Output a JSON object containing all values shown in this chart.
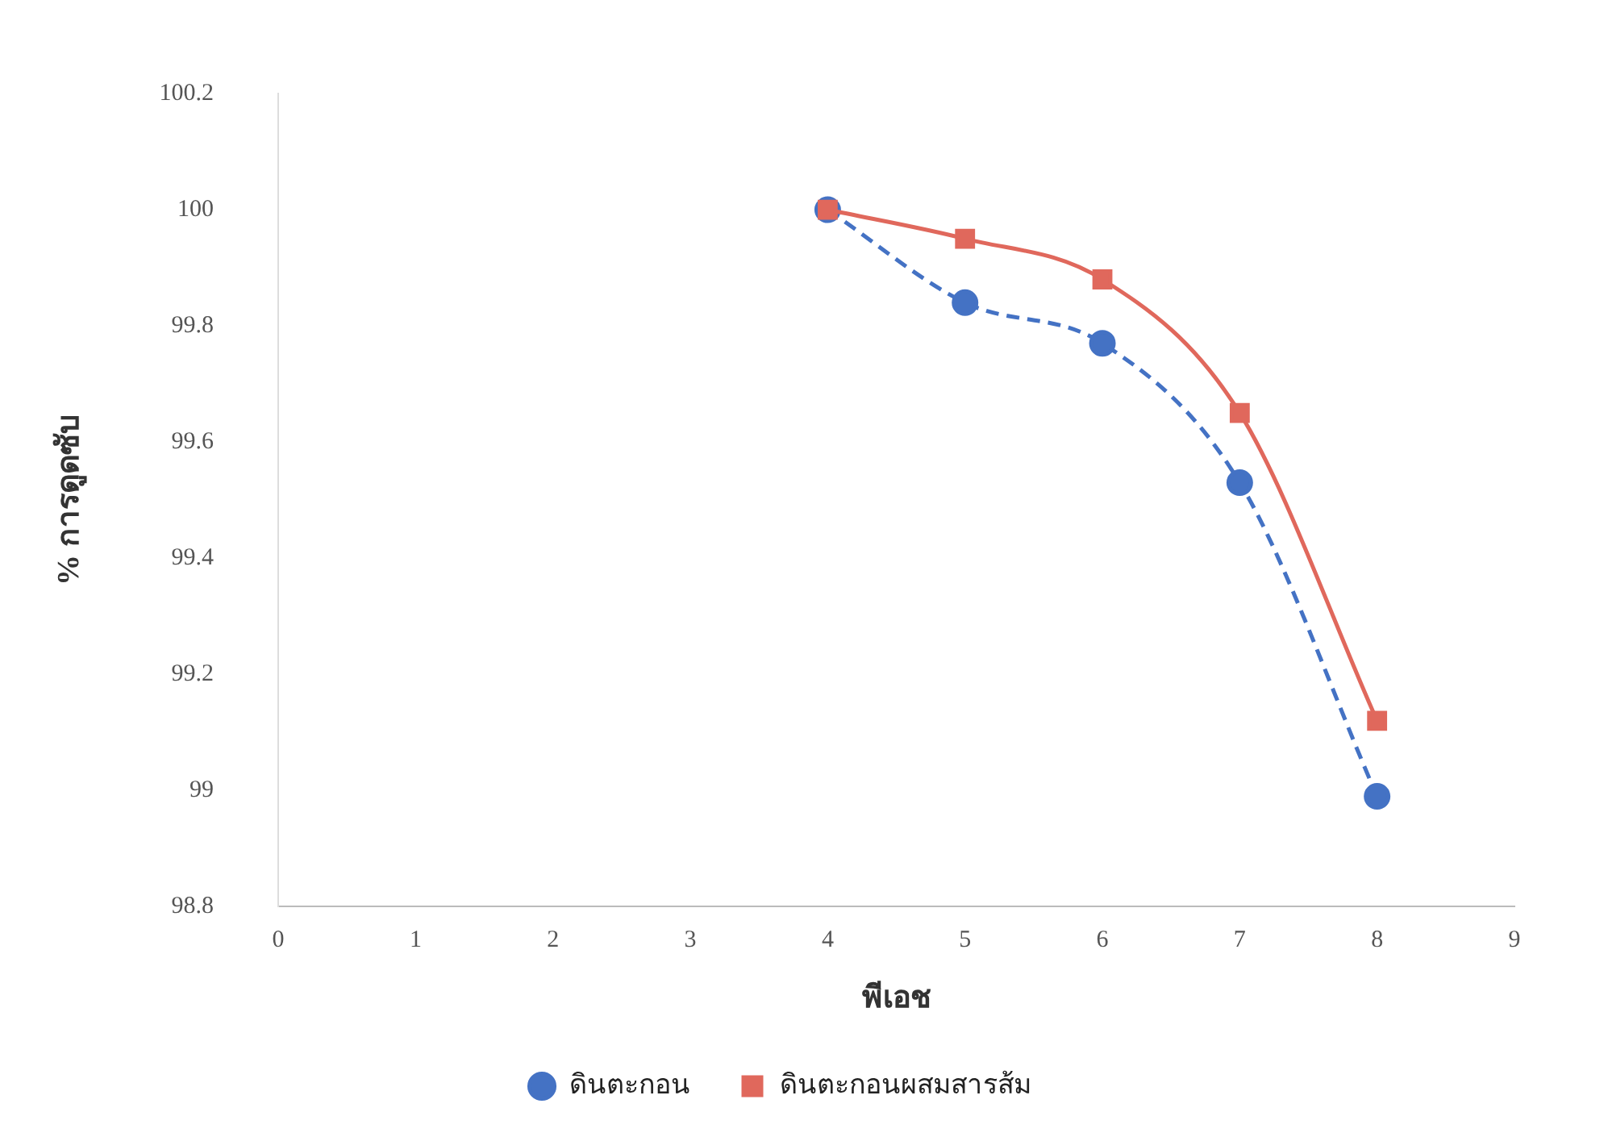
{
  "chart_data": {
    "type": "line",
    "xlabel": "พีเอช",
    "ylabel": "% การดูดซับ",
    "x": [
      4,
      5,
      6,
      7,
      8
    ],
    "series": [
      {
        "name": "ดินตะกอน",
        "color": "#4472c4",
        "values": [
          100,
          99.84,
          99.77,
          99.53,
          98.99
        ],
        "marker": "circle",
        "line_style": "dashed"
      },
      {
        "name": "ดินตะกอนผสมสารส้ม",
        "color": "#e0685c",
        "values": [
          100,
          99.95,
          99.88,
          99.65,
          99.12
        ],
        "marker": "square",
        "line_style": "solid"
      }
    ],
    "xlim": [
      0,
      9
    ],
    "xticks": [
      0,
      1,
      2,
      3,
      4,
      5,
      6,
      7,
      8,
      9
    ],
    "ylim": [
      98.8,
      100.2
    ],
    "yticks": [
      98.8,
      99,
      99.2,
      99.4,
      99.6,
      99.8,
      100,
      100.2
    ],
    "grid": false,
    "legend": "bottom"
  }
}
